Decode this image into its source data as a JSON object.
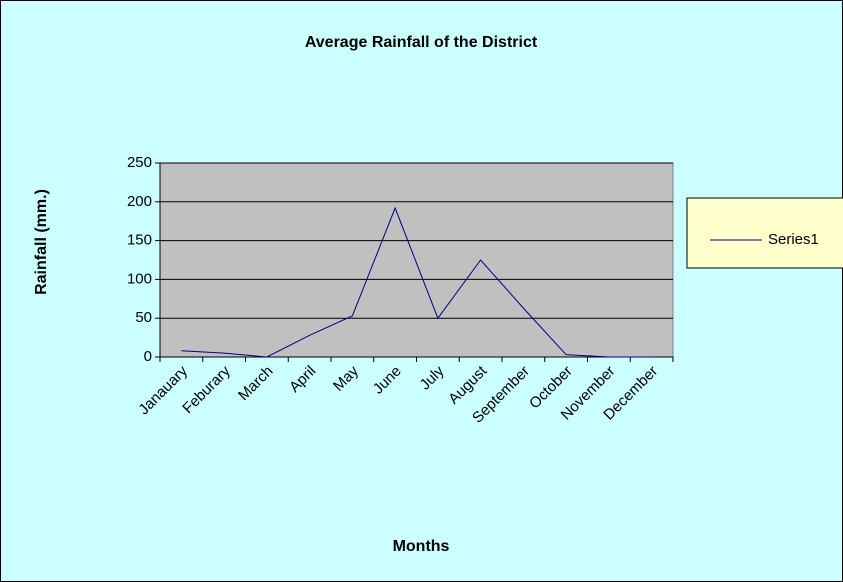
{
  "chart_data": {
    "type": "line",
    "title": "Average Rainfall of the District",
    "x_label": "Months",
    "y_label": "Rainfall (mm.)",
    "categories": [
      "Janauary",
      "Feburary",
      "March",
      "April",
      "May",
      "June",
      "July",
      "August",
      "September",
      "October",
      "November",
      "December"
    ],
    "series": [
      {
        "name": "Series1",
        "color": "#000080",
        "values": [
          8,
          5,
          0,
          28,
          53,
          192,
          50,
          125,
          63,
          3,
          0,
          0
        ]
      }
    ],
    "ylim": [
      0,
      250
    ],
    "yticks": [
      0,
      50,
      100,
      150,
      200,
      250
    ],
    "grid": true,
    "legend": "right"
  }
}
